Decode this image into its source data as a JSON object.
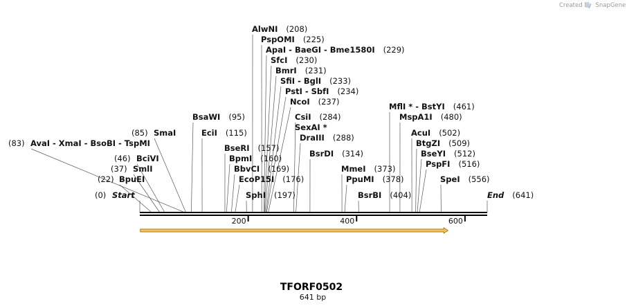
{
  "credit": {
    "text": "Created by",
    "brand": "SnapGene"
  },
  "title": "TFORF0502",
  "length_label": "641 bp",
  "sequence_length": 641,
  "colors": {
    "feature_fill": "#f5c26b",
    "feature_stroke": "#b07b10",
    "backbone": "#000000",
    "leader": "#555555"
  },
  "ruler": {
    "ticks": [
      200,
      400,
      600
    ]
  },
  "feature": {
    "start": 1,
    "end": 543,
    "direction": "forward"
  },
  "sites": [
    {
      "id": "start",
      "label": "Start",
      "position": 0,
      "italic": true
    },
    {
      "id": "bpuei",
      "label": "BpuEI",
      "position": 22
    },
    {
      "id": "smli",
      "label": "SmlI",
      "position": 37
    },
    {
      "id": "bcivi",
      "label": "BciVI",
      "position": 46
    },
    {
      "id": "avai",
      "label": "AvaI  - XmaI  - BsoBI  - TspMI",
      "position": 83
    },
    {
      "id": "smai",
      "label": "SmaI",
      "position": 85
    },
    {
      "id": "bsawi",
      "label": "BsaWI",
      "position": 95
    },
    {
      "id": "ecii",
      "label": "EciI",
      "position": 115
    },
    {
      "id": "beseri",
      "label": "BseRI",
      "position": 157
    },
    {
      "id": "bpmi",
      "label": "BpmI",
      "position": 160
    },
    {
      "id": "bbvci",
      "label": "BbvCI",
      "position": 169
    },
    {
      "id": "ecop15i",
      "label": "EcoP15I",
      "position": 176
    },
    {
      "id": "sphi",
      "label": "SphI",
      "position": 197
    },
    {
      "id": "alwni",
      "label": "AlwNI",
      "position": 208
    },
    {
      "id": "pspomi",
      "label": "PspOMI",
      "position": 225
    },
    {
      "id": "apai",
      "label": "ApaI  - BaeGI  - Bme1580I",
      "position": 229
    },
    {
      "id": "sfci",
      "label": "SfcI",
      "position": 230
    },
    {
      "id": "bmri",
      "label": "BmrI",
      "position": 231
    },
    {
      "id": "sfii",
      "label": "SfiI  - BglI",
      "position": 233
    },
    {
      "id": "psti",
      "label": "PstI  - SbfI",
      "position": 234
    },
    {
      "id": "ncoi",
      "label": "NcoI",
      "position": 237
    },
    {
      "id": "csii",
      "label": "CsiI",
      "position": 284
    },
    {
      "id": "sexai",
      "label": "SexAI *",
      "position": null
    },
    {
      "id": "draiii",
      "label": "DraIII",
      "position": 288
    },
    {
      "id": "bsrdi",
      "label": "BsrDI",
      "position": 314
    },
    {
      "id": "mmei",
      "label": "MmeI",
      "position": 373
    },
    {
      "id": "ppumi",
      "label": "PpuMI",
      "position": 378
    },
    {
      "id": "bsrbi",
      "label": "BsrBI",
      "position": 404
    },
    {
      "id": "mfli",
      "label": "MflI * - BstYI",
      "position": 461
    },
    {
      "id": "mspa1i",
      "label": "MspA1I",
      "position": 480
    },
    {
      "id": "acui",
      "label": "AcuI",
      "position": 502
    },
    {
      "id": "btgzi",
      "label": "BtgZI",
      "position": 509
    },
    {
      "id": "bseyi",
      "label": "BseYI",
      "position": 512
    },
    {
      "id": "pspfi",
      "label": "PspFI",
      "position": 516
    },
    {
      "id": "spei",
      "label": "SpeI",
      "position": 556
    },
    {
      "id": "end",
      "label": "End",
      "position": 641,
      "italic": true
    }
  ]
}
